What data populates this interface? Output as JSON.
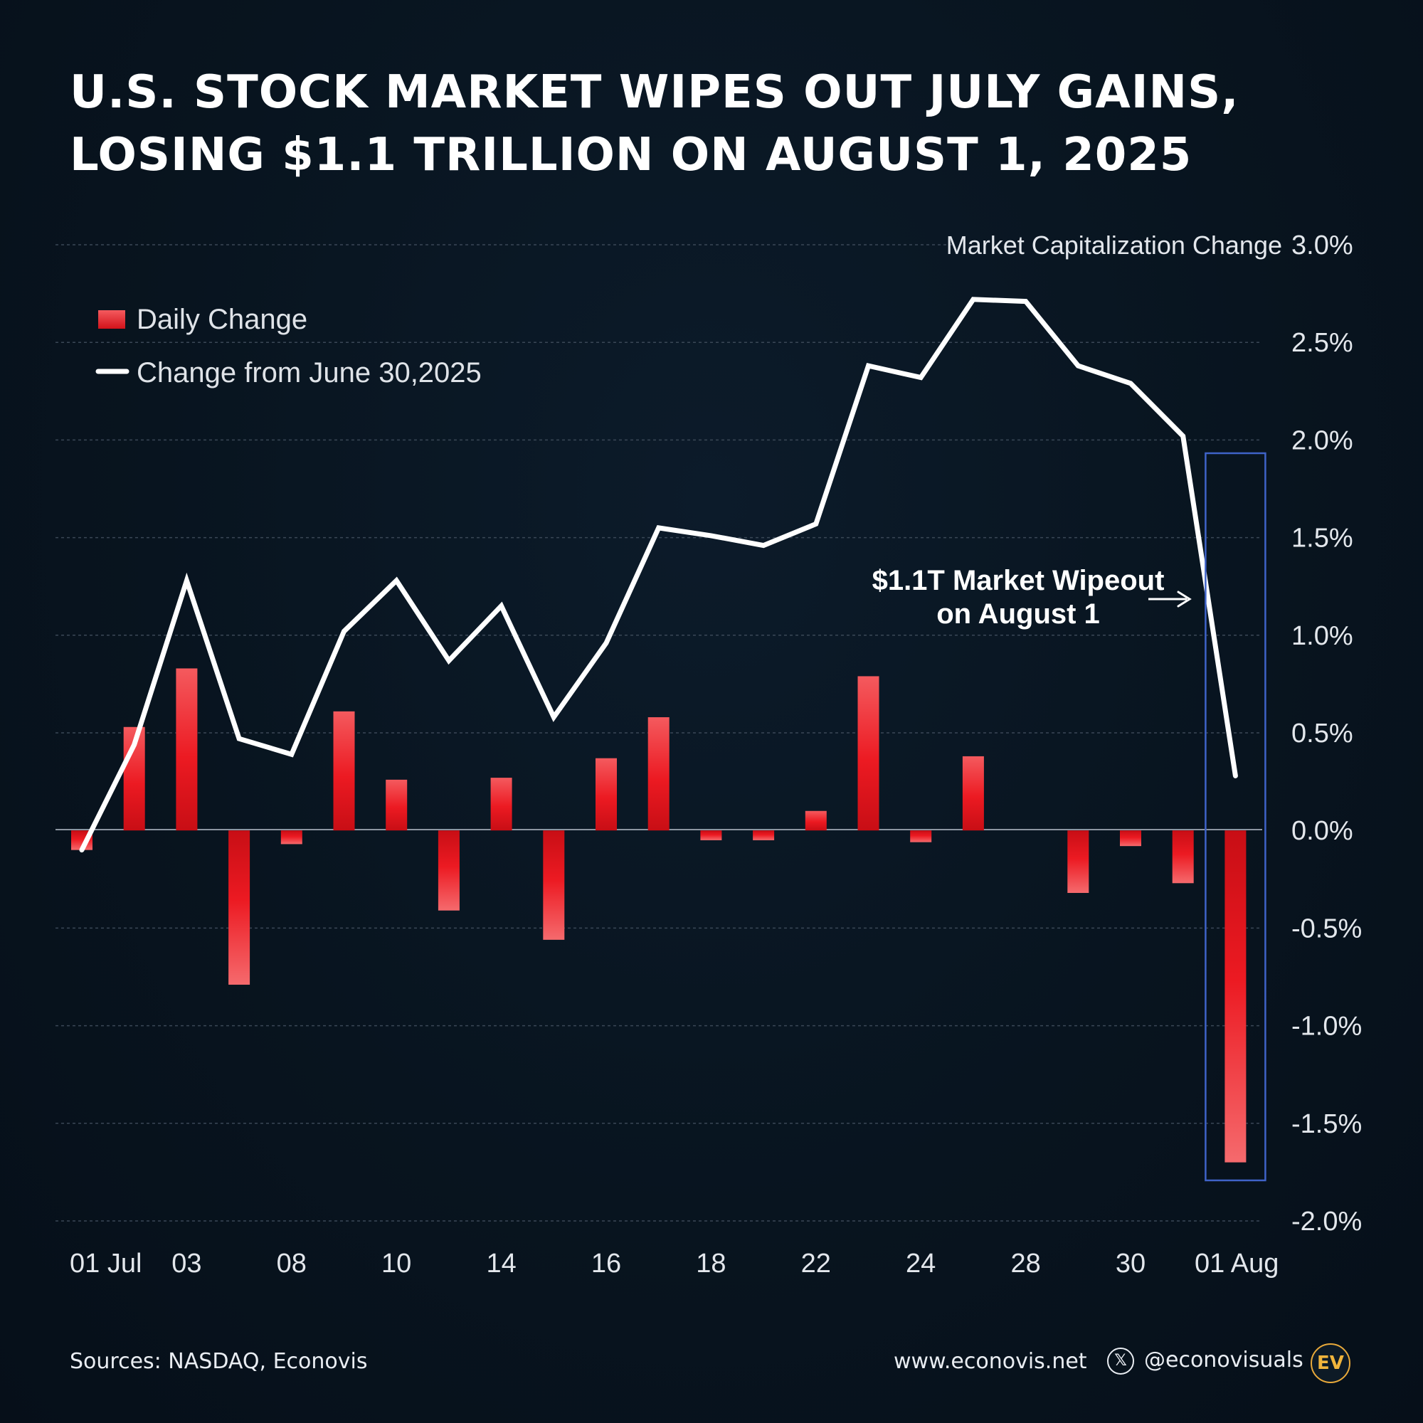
{
  "title": {
    "line1": "U.S. STOCK MARKET WIPES OUT JULY GAINS,",
    "line2": "LOSING $1.1 TRILLION ON AUGUST 1, 2025"
  },
  "chart_data": {
    "type": "bar+line",
    "axis_title": "Market Capitalization Change",
    "y_ticks": [
      "3.0%",
      "2.5%",
      "2.0%",
      "1.5%",
      "1.0%",
      "0.5%",
      "0.0%",
      "-0.5%",
      "-1.0%",
      "-1.5%",
      "-2.0%"
    ],
    "y_tick_values": [
      3.0,
      2.5,
      2.0,
      1.5,
      1.0,
      0.5,
      0.0,
      -0.5,
      -1.0,
      -1.5,
      -2.0
    ],
    "ylim": [
      -2.0,
      3.0
    ],
    "y_axis_position": "right",
    "grid": true,
    "legend_position": "top-left",
    "x_tick_labels": [
      {
        "label": "01 Jul",
        "index": 0
      },
      {
        "label": "03",
        "index": 2
      },
      {
        "label": "08",
        "index": 4
      },
      {
        "label": "10",
        "index": 6
      },
      {
        "label": "14",
        "index": 8
      },
      {
        "label": "16",
        "index": 10
      },
      {
        "label": "18",
        "index": 12
      },
      {
        "label": "22",
        "index": 14
      },
      {
        "label": "24",
        "index": 16
      },
      {
        "label": "28",
        "index": 18
      },
      {
        "label": "30",
        "index": 20
      },
      {
        "label": "01 Aug",
        "index": 22
      }
    ],
    "series": [
      {
        "name": "Daily Change",
        "kind": "bar",
        "color": "#e8121c",
        "values": [
          -0.1,
          0.53,
          0.83,
          -0.79,
          -0.07,
          0.61,
          0.26,
          -0.41,
          0.27,
          -0.56,
          0.37,
          0.58,
          -0.05,
          -0.05,
          0.1,
          0.79,
          -0.06,
          0.38,
          0.0,
          -0.32,
          -0.08,
          -0.27,
          -1.7
        ]
      },
      {
        "name": "Change from June 30,2025",
        "kind": "line",
        "color": "#ffffff",
        "values": [
          -0.1,
          0.44,
          1.28,
          0.47,
          0.39,
          1.02,
          1.28,
          0.87,
          1.15,
          0.58,
          0.96,
          1.55,
          1.51,
          1.46,
          1.57,
          2.38,
          2.32,
          2.72,
          2.71,
          2.38,
          2.29,
          2.02,
          0.28
        ]
      }
    ],
    "highlight_index": 22,
    "annotation": {
      "line1": "$1.1T Market Wipeout",
      "line2": "on August 1"
    }
  },
  "colors": {
    "background": "#08141f",
    "bar": "#e8121c",
    "line": "#ffffff",
    "highlight_box": "#3f63c8",
    "grid": "#3a4756"
  },
  "footer": {
    "source": "Sources: NASDAQ, Econovis",
    "website": "www.econovis.net",
    "x_icon": "x-logo-icon",
    "handle": "@econovisuals",
    "logo_text": "EV"
  }
}
